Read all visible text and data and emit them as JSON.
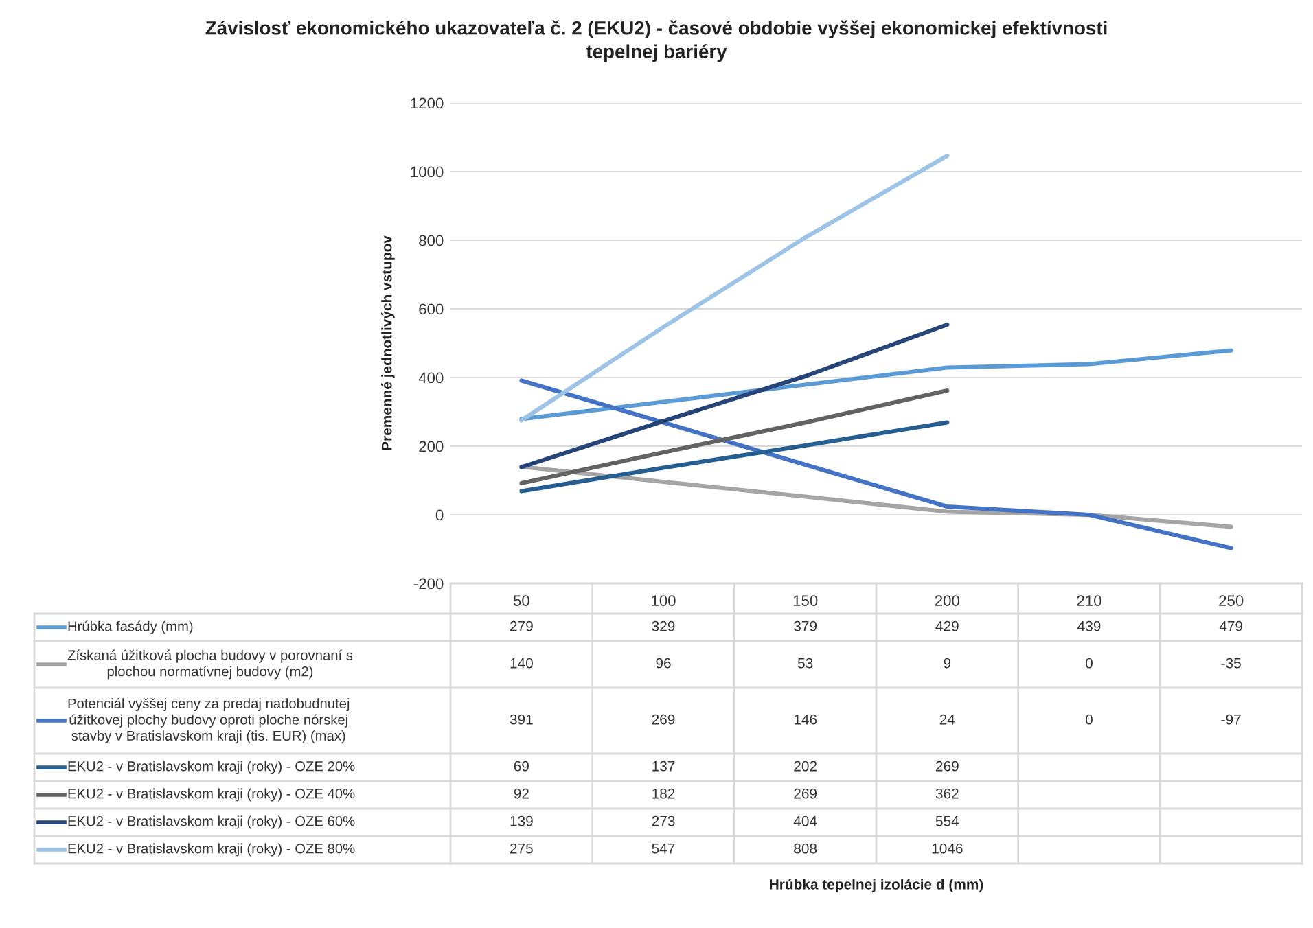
{
  "chart_data": {
    "type": "line",
    "title": "Závislosť ekonomického ukazovateľa č. 2 (EKU2) - časové obdobie vyššej ekonomickej efektívnosti\ntepelnej bariéry",
    "annotations": [
      "Hrúbka tepelnej izolácie d (mm)"
    ],
    "ylabel": "Premenné jednotlivých vstupov",
    "categories": [
      "50",
      "100",
      "150",
      "200",
      "210",
      "250"
    ],
    "ylim": [
      -200,
      1200
    ],
    "yticks": [
      -200,
      0,
      200,
      400,
      600,
      800,
      1000,
      1200
    ],
    "grid": "y",
    "legend": "bottom",
    "data_labels": true,
    "marker": "none",
    "line_style": "solid",
    "series": [
      {
        "name": "Hrúbka fasády (mm)",
        "color": "#5b9bd5",
        "values": [
          279,
          329,
          379,
          429,
          439,
          479
        ]
      },
      {
        "name": "Získaná úžitková plocha budovy v porovnaní s\nplochou normatívnej budovy (m2)",
        "color": "#a5a5a5",
        "values": [
          140,
          96,
          53,
          9,
          0,
          -35
        ]
      },
      {
        "name": "Potenciál vyššej ceny za predaj nadobudnutej\núžitkovej plochy budovy oproti ploche nórskej\nstavby v Bratislavskom kraji (tis. EUR) (max)",
        "color": "#4472c4",
        "values": [
          391,
          269,
          146,
          24,
          0,
          -97
        ]
      },
      {
        "name": "EKU2 - v Bratislavskom kraji (roky) - OZE 20%",
        "color": "#255e91",
        "values": [
          69,
          137,
          202,
          269,
          null,
          null
        ]
      },
      {
        "name": "EKU2 - v Bratislavskom kraji (roky) - OZE 40%",
        "color": "#636363",
        "values": [
          92,
          182,
          269,
          362,
          null,
          null
        ]
      },
      {
        "name": "EKU2 - v Bratislavskom kraji (roky) - OZE 60%",
        "color": "#264478",
        "values": [
          139,
          273,
          404,
          554,
          null,
          null
        ]
      },
      {
        "name": "EKU2 - v Bratislavskom kraji (roky) - OZE 80%",
        "color": "#9dc3e6",
        "values": [
          275,
          547,
          808,
          1046,
          null,
          null
        ]
      }
    ]
  }
}
